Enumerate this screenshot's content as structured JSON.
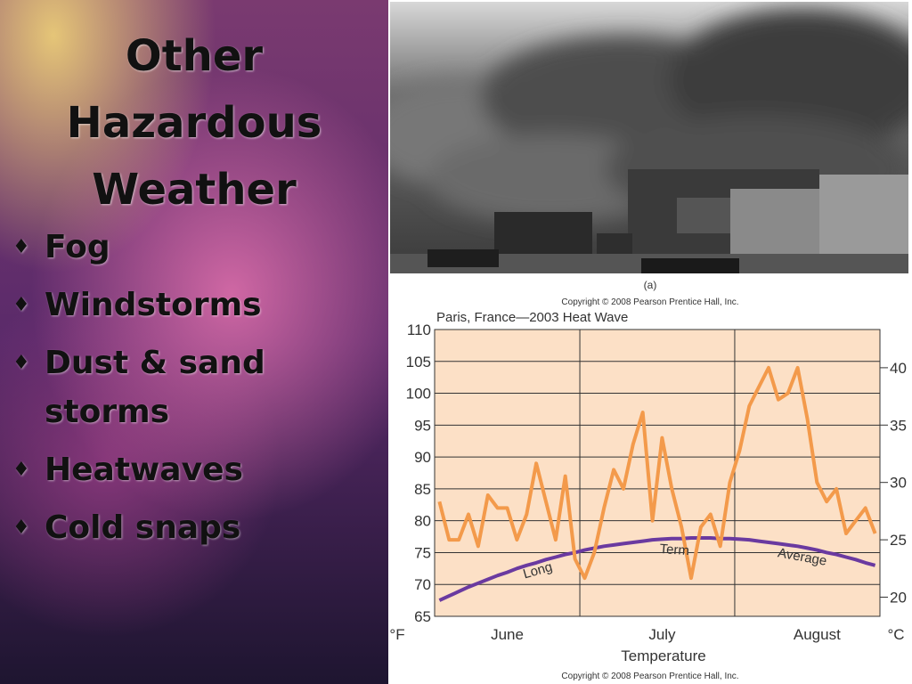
{
  "slide": {
    "title": "Other Hazardous Weather",
    "bullets": [
      "Fog",
      "Windstorms",
      "Dust & sand storms",
      "Heatwaves",
      "Cold snaps"
    ]
  },
  "photo": {
    "caption": "(a)",
    "copyright": "Copyright © 2008 Pearson Prentice Hall, Inc."
  },
  "chart_data": {
    "type": "line",
    "title": "Paris, France—2003 Heat Wave",
    "x_label": "Temperature",
    "y_label": "°F",
    "y2_label": "°C",
    "copyright": "Copyright © 2008 Pearson Prentice Hall, Inc.",
    "annotations": [
      "Long",
      "Term",
      "Average"
    ],
    "categories": [
      null,
      null,
      null,
      null,
      null,
      null,
      null,
      "June",
      null,
      null,
      null,
      null,
      null,
      null,
      null,
      null,
      null,
      null,
      null,
      null,
      null,
      null,
      null,
      "July",
      null,
      null,
      null,
      null,
      null,
      null,
      null,
      null,
      null,
      null,
      null,
      null,
      null,
      null,
      null,
      "August",
      null,
      null,
      null,
      null,
      null,
      null
    ],
    "series": [
      {
        "color": "#f39a4b",
        "values": [
          83,
          77,
          77,
          81,
          76,
          84,
          82,
          82,
          77,
          81,
          89,
          83,
          77,
          87,
          74,
          71,
          75,
          82,
          88,
          85,
          92,
          97,
          80,
          93,
          85,
          79,
          71,
          79,
          81,
          76,
          86,
          91,
          98,
          101,
          104,
          99,
          100,
          104,
          96,
          86,
          83,
          85,
          78,
          80,
          82,
          78
        ]
      },
      {
        "color": "#6a3aa0",
        "values": [
          67.5,
          68.2,
          68.9,
          69.6,
          70.2,
          70.8,
          71.4,
          71.9,
          72.5,
          73.0,
          73.4,
          73.9,
          74.3,
          74.7,
          75.0,
          75.4,
          75.7,
          76.0,
          76.2,
          76.4,
          76.6,
          76.8,
          77.0,
          77.1,
          77.2,
          77.2,
          77.3,
          77.3,
          77.3,
          77.2,
          77.2,
          77.1,
          77.0,
          76.8,
          76.6,
          76.4,
          76.2,
          76.0,
          75.7,
          75.4,
          75.0,
          74.7,
          74.3,
          73.9,
          73.4,
          73.0
        ]
      }
    ],
    "ylim": [
      65,
      110
    ],
    "yticks": [
      65,
      70,
      75,
      80,
      85,
      90,
      95,
      100,
      105,
      110
    ],
    "y2lim": [
      18.33,
      43.33
    ],
    "y2ticks": [
      20,
      25,
      30,
      35,
      40
    ],
    "grid": true,
    "background": "#fce0c6"
  }
}
